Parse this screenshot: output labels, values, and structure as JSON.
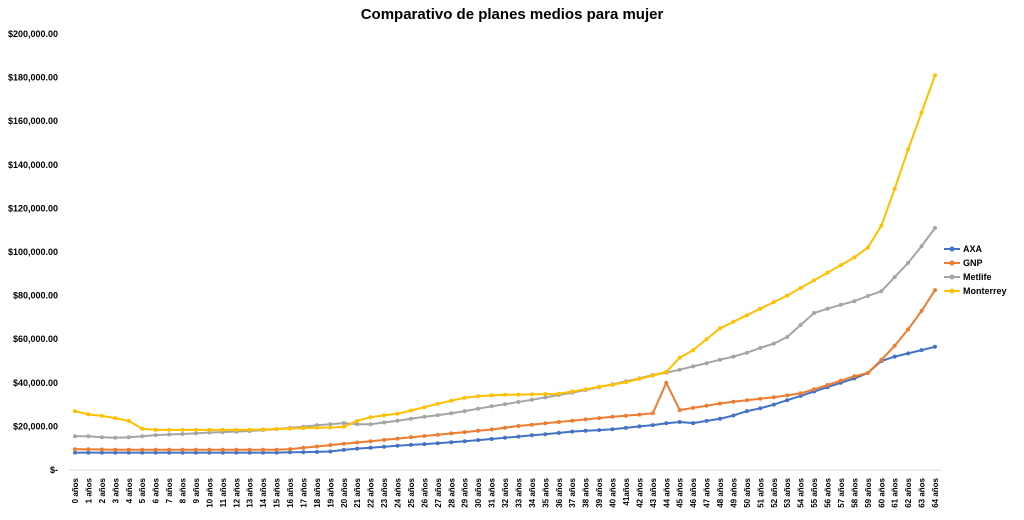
{
  "chart_data": {
    "type": "line",
    "title": "Comparativo de planes medios para mujer",
    "xlabel": "",
    "ylabel": "",
    "ylim": [
      0,
      200000
    ],
    "yticks": [
      0,
      20000,
      40000,
      60000,
      80000,
      100000,
      120000,
      140000,
      160000,
      180000,
      200000
    ],
    "ytick_labels": [
      "$-",
      "$20,000.00",
      "$40,000.00",
      "$60,000.00",
      "$80,000.00",
      "$100,000.00",
      "$120,000.00",
      "$140,000.00",
      "$160,000.00",
      "$180,000.00",
      "$200,000.00"
    ],
    "categories": [
      "0 años",
      "1 años",
      "2 años",
      "3 años",
      "4 años",
      "5 años",
      "6 años",
      "7 años",
      "8 años",
      "9 años",
      "10 años",
      "11 años",
      "12 años",
      "13 años",
      "14 años",
      "15 años",
      "16 años",
      "17 años",
      "18 años",
      "19 años",
      "20 años",
      "21 años",
      "22 años",
      "23 años",
      "24 años",
      "25 años",
      "26 años",
      "27 años",
      "28 años",
      "29 años",
      "30 años",
      "31 años",
      "32 años",
      "33 años",
      "34 años",
      "35 años",
      "36 años",
      "37 años",
      "38 años",
      "39 años",
      "40 años",
      "41años",
      "42 años",
      "43 años",
      "44 años",
      "45 años",
      "46 años",
      "47 años",
      "48 años",
      "49 años",
      "50 años",
      "51 años",
      "52 años",
      "53 años",
      "54 años",
      "55 años",
      "56 años",
      "57 años",
      "58 años",
      "59 años",
      "60 años",
      "61 años",
      "62 años",
      "63 años",
      "64 años"
    ],
    "grid": false,
    "legend_position": "right",
    "series": [
      {
        "name": "AXA",
        "color": "#4472C4",
        "values": [
          8000,
          8000,
          8000,
          8000,
          8000,
          8000,
          8000,
          8000,
          8000,
          8000,
          8000,
          8000,
          8000,
          8000,
          8000,
          8000,
          8100,
          8200,
          8300,
          8500,
          9200,
          9800,
          10200,
          10700,
          11100,
          11500,
          11900,
          12300,
          12700,
          13200,
          13700,
          14200,
          14800,
          15300,
          15900,
          16400,
          17000,
          17600,
          18000,
          18300,
          18700,
          19300,
          20000,
          20600,
          21400,
          22000,
          21500,
          22500,
          23500,
          25000,
          27000,
          28300,
          30000,
          32000,
          34000,
          36000,
          38000,
          40000,
          42000,
          44500,
          50000,
          52000,
          53500,
          55000,
          56500
        ]
      },
      {
        "name": "GNP",
        "color": "#ED7D31",
        "values": [
          9500,
          9500,
          9400,
          9300,
          9300,
          9300,
          9300,
          9300,
          9300,
          9300,
          9300,
          9300,
          9300,
          9300,
          9300,
          9300,
          9600,
          10200,
          10800,
          11400,
          12000,
          12600,
          13200,
          13800,
          14400,
          15000,
          15600,
          16200,
          16800,
          17400,
          18000,
          18600,
          19400,
          20200,
          20800,
          21400,
          22000,
          22600,
          23200,
          23800,
          24400,
          24900,
          25400,
          26000,
          40000,
          27500,
          28500,
          29500,
          30500,
          31300,
          32000,
          32700,
          33400,
          34200,
          35200,
          37000,
          39000,
          41000,
          43000,
          44500,
          50500,
          57000,
          64500,
          73000,
          82500
        ]
      },
      {
        "name": "Metlife",
        "color": "#A5A5A5",
        "values": [
          15500,
          15500,
          15000,
          14800,
          15000,
          15500,
          16000,
          16300,
          16500,
          16800,
          17200,
          17400,
          17600,
          17900,
          18300,
          18800,
          19300,
          19800,
          20500,
          21000,
          21500,
          21000,
          21000,
          21800,
          22600,
          23500,
          24400,
          25100,
          26000,
          27000,
          28100,
          29200,
          30200,
          31200,
          32200,
          33300,
          34400,
          35500,
          36700,
          38000,
          39300,
          40700,
          42000,
          43600,
          44700,
          46000,
          47500,
          49000,
          50600,
          52000,
          53800,
          56000,
          58000,
          61000,
          66500,
          72000,
          74000,
          75800,
          77500,
          79800,
          82000,
          88500,
          95000,
          102700,
          111000
        ]
      },
      {
        "name": "Monterrey",
        "color": "#FFC000",
        "values": [
          27000,
          25500,
          24800,
          23800,
          22500,
          18900,
          18400,
          18400,
          18400,
          18400,
          18400,
          18400,
          18400,
          18500,
          18600,
          18800,
          19000,
          19200,
          19400,
          19500,
          19800,
          22500,
          24200,
          25100,
          25800,
          27300,
          28800,
          30400,
          31800,
          33100,
          33800,
          34200,
          34500,
          34600,
          34700,
          34800,
          35000,
          36000,
          37000,
          38200,
          39100,
          40300,
          41800,
          43300,
          45000,
          51500,
          55000,
          60000,
          65000,
          68000,
          71000,
          74000,
          77000,
          80000,
          83500,
          87000,
          90500,
          94000,
          97500,
          102000,
          112000,
          129000,
          147000,
          164000,
          181000
        ]
      }
    ]
  }
}
